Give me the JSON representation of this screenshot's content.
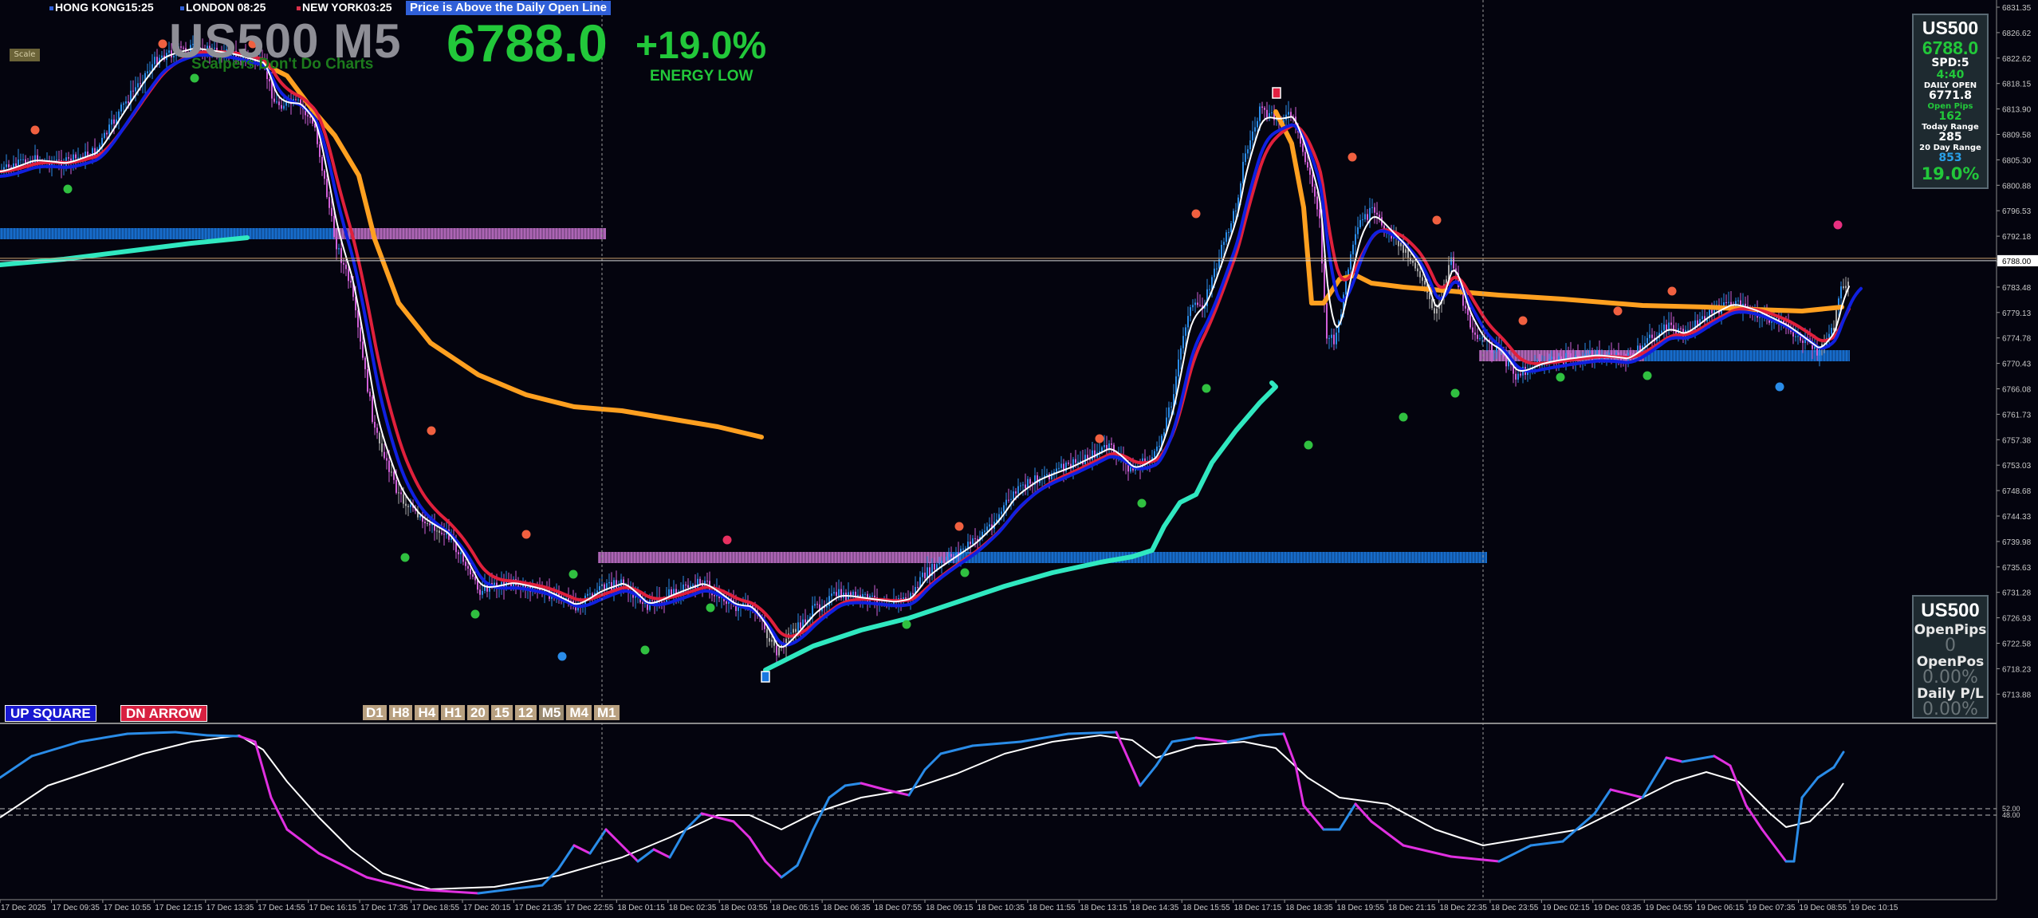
{
  "sessions": [
    {
      "label": "HONG KONG",
      "time": "15:25",
      "color": "#3060d8"
    },
    {
      "label": "LONDON",
      "time": "08:25",
      "color": "#3060d8"
    },
    {
      "label": "NEW YORK",
      "time": "03:25",
      "color": "#d8304a"
    }
  ],
  "banner": "Price is Above the Daily Open Line",
  "scale_label": "Scale",
  "symbol_title": "US500 M5",
  "tagline": "Scalpers Don't Do Charts",
  "big_price": "6788.0",
  "big_pct": "+19.0%",
  "energy": "ENERGY LOW",
  "info_panel": {
    "symbol": "US500",
    "price": "6788.0",
    "spread": "SPD:5",
    "countdown": "4:40",
    "daily_open_label": "DAILY OPEN",
    "daily_open": "6771.8",
    "open_pips_label": "Open Pips",
    "open_pips": "162",
    "today_range_label": "Today Range",
    "today_range": "285",
    "day20_range_label": "20 Day Range",
    "day20_range": "853",
    "pct": "19.0%"
  },
  "positions_panel": {
    "symbol": "US500",
    "open_pips_label": "OpenPips",
    "open_pips": "0",
    "open_pos_label": "OpenPos",
    "open_pos": "0.00%",
    "daily_pl_label": "Daily P/L",
    "daily_pl": "0.00%"
  },
  "up_tag": "UP SQUARE",
  "dn_tag": "DN ARROW",
  "timeframes": [
    "D1",
    "H8",
    "H4",
    "H1",
    "20",
    "15",
    "12",
    "M5",
    "M4",
    "M1"
  ],
  "selected_timeframe": "M5",
  "price_axis": [
    "6831.35",
    "6826.62",
    "6822.62",
    "6818.15",
    "6813.90",
    "6809.58",
    "6805.30",
    "6800.88",
    "6796.53",
    "6792.18",
    "6788.00",
    "6783.48",
    "6779.13",
    "6774.78",
    "6770.43",
    "6766.08",
    "6761.73",
    "6757.38",
    "6753.03",
    "6748.68",
    "6744.33",
    "6739.98",
    "6735.63",
    "6731.28",
    "6726.93",
    "6722.58",
    "6718.23",
    "6713.88"
  ],
  "current_price_axis": "6788.00",
  "osc_axis": [
    "52.00",
    "48.00"
  ],
  "time_axis": [
    "17 Dec 2025",
    "17 Dec 09:35",
    "17 Dec 10:55",
    "17 Dec 12:15",
    "17 Dec 13:35",
    "17 Dec 14:55",
    "17 Dec 16:15",
    "17 Dec 17:35",
    "17 Dec 18:55",
    "17 Dec 20:15",
    "17 Dec 21:35",
    "17 Dec 22:55",
    "18 Dec 01:15",
    "18 Dec 02:35",
    "18 Dec 03:55",
    "18 Dec 05:15",
    "18 Dec 06:35",
    "18 Dec 07:55",
    "18 Dec 09:15",
    "18 Dec 10:35",
    "18 Dec 11:55",
    "18 Dec 13:15",
    "18 Dec 14:35",
    "18 Dec 15:55",
    "18 Dec 17:15",
    "18 Dec 18:35",
    "18 Dec 19:55",
    "18 Dec 21:15",
    "18 Dec 22:35",
    "18 Dec 23:55",
    "19 Dec 02:15",
    "19 Dec 03:35",
    "19 Dec 04:55",
    "19 Dec 06:15",
    "19 Dec 07:35",
    "19 Dec 08:55",
    "19 Dec 10:15"
  ],
  "colors": {
    "background": "#04040e",
    "bull_candle": "#2a8ce8",
    "bear_candle": "#d060d8",
    "neutral_candle": "#a8a8a8",
    "ema_fast": "#ffffff",
    "ema_blue": "#1020e0",
    "ema_red": "#e0203c",
    "ema_orange": "#ffa020",
    "trail_line": "#30e8c0",
    "zone_blue": "#1a78e0",
    "zone_pink": "#c070c8",
    "green_dot": "#30c040",
    "red_dot": "#f06040",
    "osc_fast": "#2a8ce8",
    "osc_fast_down": "#e030e0",
    "osc_slow": "#ffffff"
  }
}
